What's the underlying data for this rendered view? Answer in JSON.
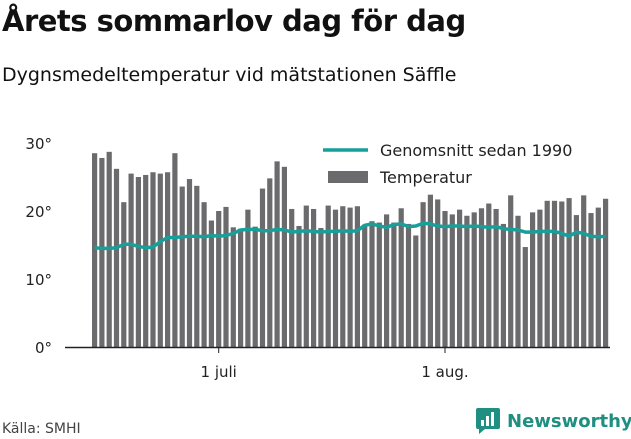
{
  "header": {
    "title": "Årets sommarlov dag för dag",
    "subtitle": "Dygnsmedeltemperatur vid mätstationen Säffle"
  },
  "footer": {
    "source": "Källa: SMHI",
    "brand": "Newsworthy"
  },
  "colors": {
    "bars": "#6b6b6e",
    "line": "#17a09a",
    "axis": "#222222",
    "brand": "#1e8f80"
  },
  "icons": {
    "brand": "chat-bar-chart-icon"
  },
  "chart_data": {
    "type": "bar",
    "title": "Årets sommarlov dag för dag",
    "subtitle": "Dygnsmedeltemperatur vid mätstationen Säffle",
    "ylim": [
      0,
      30
    ],
    "yticks": [
      0,
      10,
      20,
      30
    ],
    "ytick_labels": [
      "0°",
      "10°",
      "20°",
      "30°"
    ],
    "xtick_labels": [
      {
        "label": "1 juli",
        "day_index": 17
      },
      {
        "label": "1 aug.",
        "day_index": 48
      }
    ],
    "legend_placement": "top-right",
    "legend": [
      "Genomsnitt sedan 1990",
      "Temperatur"
    ],
    "grid": false,
    "series": [
      {
        "name": "Temperatur",
        "type": "bar",
        "values": [
          28.5,
          27.8,
          28.7,
          26.2,
          21.3,
          25.5,
          25.0,
          25.3,
          25.7,
          25.5,
          25.7,
          28.5,
          23.6,
          24.7,
          23.7,
          21.3,
          18.6,
          20.0,
          20.6,
          17.6,
          17.4,
          20.2,
          17.7,
          23.3,
          24.8,
          27.3,
          26.5,
          20.3,
          17.8,
          20.8,
          20.3,
          17.5,
          20.8,
          20.2,
          20.7,
          20.5,
          20.7,
          18.0,
          18.5,
          18.3,
          19.5,
          18.3,
          20.4,
          18.1,
          16.4,
          21.3,
          22.4,
          21.7,
          20.0,
          19.5,
          20.2,
          19.3,
          19.8,
          20.4,
          21.1,
          20.3,
          18.1,
          22.3,
          19.3,
          14.7,
          19.8,
          20.2,
          21.5,
          21.5,
          21.4,
          21.9,
          19.4,
          22.3,
          19.7,
          20.5,
          21.8
        ]
      },
      {
        "name": "Genomsnitt sedan 1990",
        "type": "line",
        "values": [
          14.6,
          14.5,
          14.5,
          14.6,
          15.1,
          15.1,
          14.8,
          14.6,
          14.7,
          15.5,
          16.1,
          16.1,
          16.2,
          16.3,
          16.3,
          16.2,
          16.4,
          16.3,
          16.4,
          16.7,
          17.2,
          17.3,
          17.3,
          17.1,
          17.1,
          17.3,
          17.2,
          16.9,
          17.0,
          17.1,
          17.0,
          16.9,
          17.0,
          17.0,
          17.1,
          17.0,
          17.1,
          17.9,
          18.1,
          17.8,
          17.6,
          18.0,
          18.1,
          17.7,
          17.8,
          18.2,
          18.1,
          17.8,
          17.7,
          17.8,
          17.8,
          17.7,
          17.8,
          17.7,
          17.6,
          17.7,
          17.4,
          17.3,
          17.2,
          16.9,
          16.9,
          17.0,
          17.0,
          17.0,
          16.7,
          16.3,
          16.9,
          16.7,
          16.3,
          16.2,
          16.3
        ]
      }
    ]
  }
}
